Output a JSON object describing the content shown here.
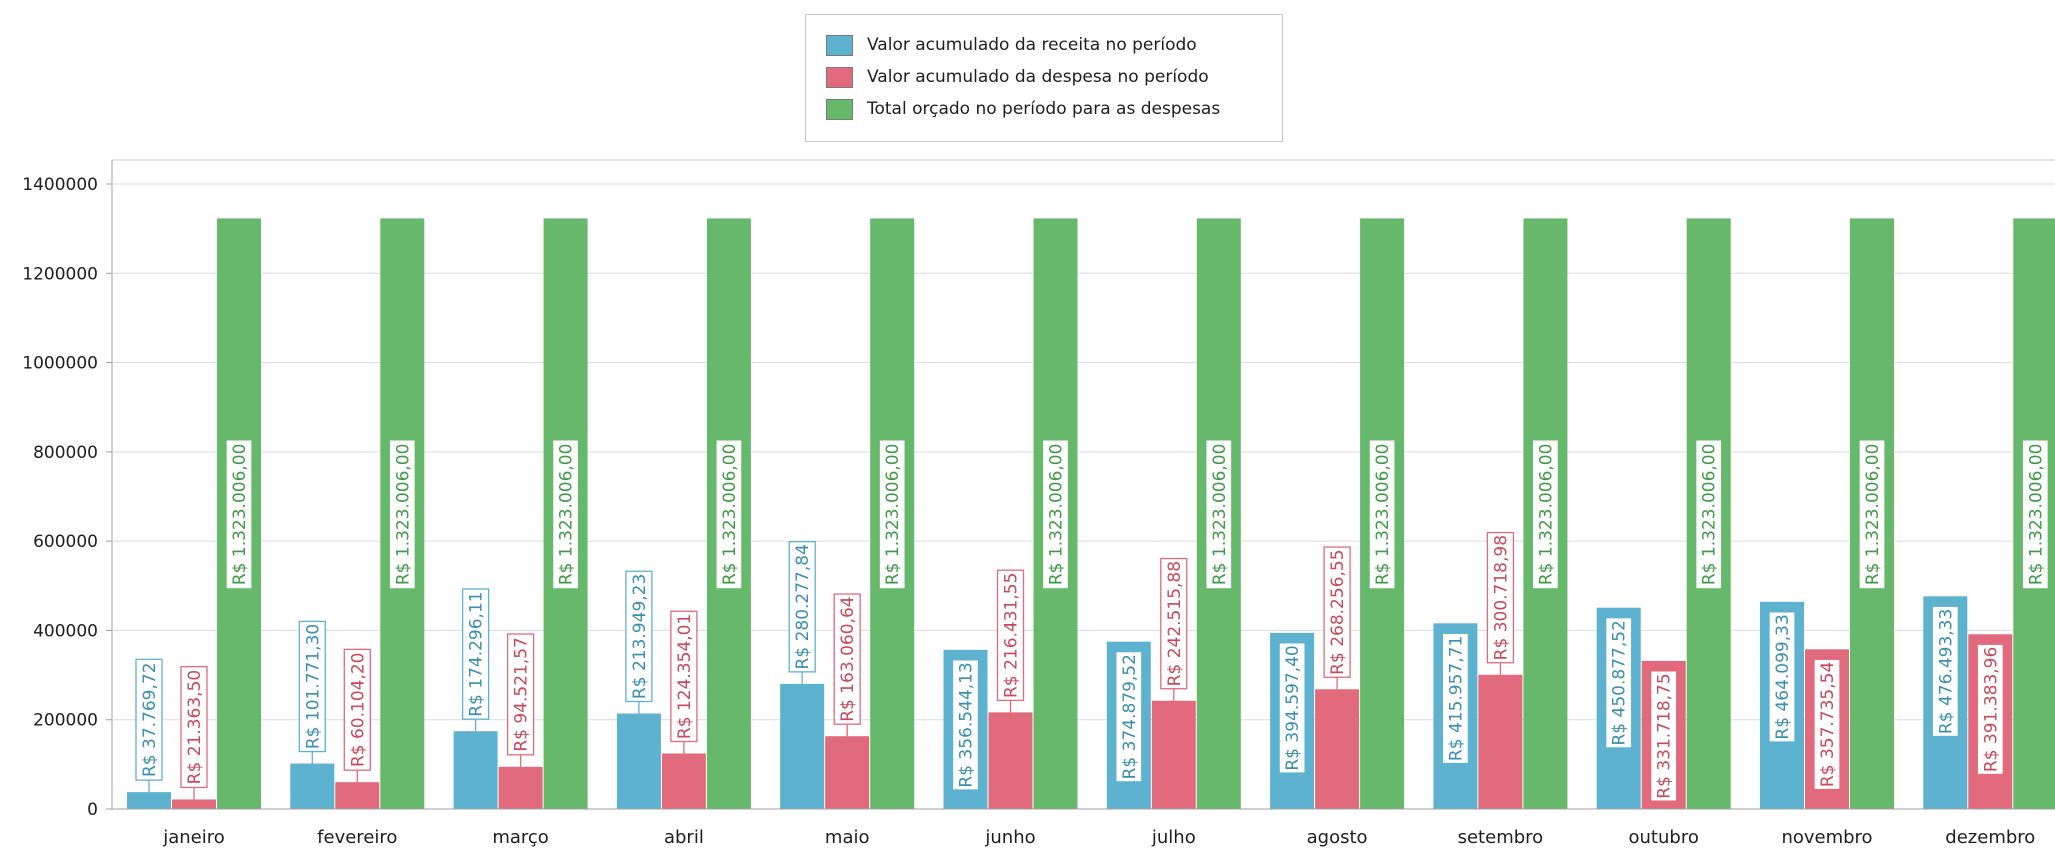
{
  "legend": {
    "items": [
      {
        "label": "Valor acumulado da receita no período",
        "color": "#5db3cf"
      },
      {
        "label": "Valor acumulado da despesa no período",
        "color": "#e16a7d"
      },
      {
        "label": "Total orçado no período para as despesas",
        "color": "#66b96a"
      }
    ]
  },
  "chart_data": {
    "type": "bar",
    "categories": [
      "janeiro",
      "fevereiro",
      "março",
      "abril",
      "maio",
      "junho",
      "julho",
      "agosto",
      "setembro",
      "outubro",
      "novembro",
      "dezembro"
    ],
    "series": [
      {
        "name": "Valor acumulado da receita no período",
        "color": "#5db3cf",
        "values": [
          37769.72,
          101771.3,
          174296.11,
          213949.23,
          280277.84,
          356544.13,
          374879.52,
          394597.4,
          415957.71,
          450877.52,
          464099.33,
          476493.33
        ],
        "labels": [
          "R$ 37.769,72",
          "R$ 101.771,30",
          "R$ 174.296,11",
          "R$ 213.949,23",
          "R$ 280.277,84",
          "R$ 356.544,13",
          "R$ 374.879,52",
          "R$ 394.597,40",
          "R$ 415.957,71",
          "R$ 450.877,52",
          "R$ 464.099,33",
          "R$ 476.493,33"
        ]
      },
      {
        "name": "Valor acumulado da despesa no período",
        "color": "#e16a7d",
        "values": [
          21363.5,
          60104.2,
          94521.57,
          124354.01,
          163060.64,
          216431.55,
          242515.88,
          268256.55,
          300718.98,
          331718.75,
          357735.54,
          391383.96
        ],
        "labels": [
          "R$ 21.363,50",
          "R$ 60.104,20",
          "R$ 94.521,57",
          "R$ 124.354,01",
          "R$ 163.060,64",
          "R$ 216.431,55",
          "R$ 242.515,88",
          "R$ 268.256,55",
          "R$ 300.718,98",
          "R$ 331.718,75",
          "R$ 357.735,54",
          "R$ 391.383,96"
        ]
      },
      {
        "name": "Total orçado no período para as despesas",
        "color": "#66b96a",
        "values": [
          1323006,
          1323006,
          1323006,
          1323006,
          1323006,
          1323006,
          1323006,
          1323006,
          1323006,
          1323006,
          1323006,
          1323006
        ],
        "labels": [
          "R$ 1.323.006,00",
          "R$ 1.323.006,00",
          "R$ 1.323.006,00",
          "R$ 1.323.006,00",
          "R$ 1.323.006,00",
          "R$ 1.323.006,00",
          "R$ 1.323.006,00",
          "R$ 1.323.006,00",
          "R$ 1.323.006,00",
          "R$ 1.323.006,00",
          "R$ 1.323.006,00",
          "R$ 1.323.006,00"
        ]
      }
    ],
    "yticks": [
      "0",
      "200000",
      "400000",
      "600000",
      "800000",
      "1000000",
      "1200000",
      "1400000"
    ],
    "ylim": [
      0,
      1400000
    ],
    "grid": true,
    "legend_position": "top-center",
    "xlabel": "",
    "ylabel": ""
  }
}
